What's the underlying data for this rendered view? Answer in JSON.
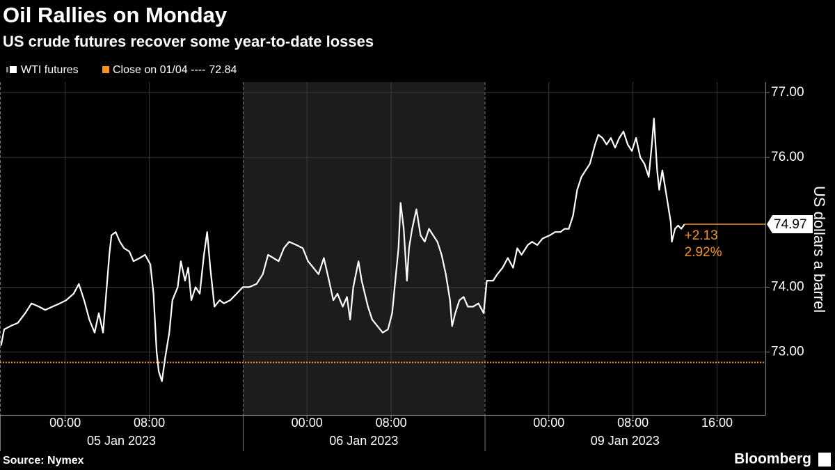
{
  "chart_data": {
    "type": "line",
    "title": "Oil Rallies on Monday",
    "subtitle": "US crude futures recover some year-to-date losses",
    "y_axis_label": "US dollars a barrel",
    "source": "Source: Nymex",
    "brand": "Bloomberg",
    "x": [
      -6.1,
      -5.8,
      -5.2,
      -4.5,
      -3.8,
      -3.2,
      -2.5,
      -1.9,
      -1.2,
      -0.5,
      0.1,
      0.8,
      1.3,
      1.8,
      2.3,
      2.8,
      3.2,
      3.6,
      3.9,
      4.2,
      4.4,
      4.8,
      5.2,
      5.6,
      6.1,
      6.5,
      7.1,
      7.6,
      8.1,
      8.4,
      8.7,
      8.9,
      9.2,
      9.5,
      9.9,
      10.2,
      10.7,
      11.0,
      11.4,
      11.7,
      12.0,
      12.4,
      12.8,
      13.2,
      13.5,
      13.8,
      14.2,
      14.7,
      15.1,
      15.7,
      16.3,
      16.9,
      17.5,
      18.2,
      18.8,
      19.3,
      19.8,
      20.3,
      20.8,
      21.3,
      22.0,
      22.6,
      23.1,
      23.6,
      24.1,
      24.6,
      25.1,
      25.5,
      25.9,
      26.4,
      26.8,
      27.1,
      27.4,
      27.9,
      28.2,
      28.8,
      29.2,
      29.7,
      30.2,
      30.7,
      31.1,
      31.4,
      31.7,
      31.9,
      32.2,
      32.5,
      32.7,
      33.0,
      33.4,
      33.8,
      34.2,
      34.6,
      35.0,
      35.4,
      35.8,
      36.2,
      36.6,
      36.8,
      37.1,
      37.5,
      37.9,
      38.3,
      38.8,
      39.3,
      39.8,
      40.1,
      40.7,
      41.1,
      41.6,
      42.1,
      42.6,
      43.0,
      43.4,
      44.0,
      44.4,
      44.9,
      45.4,
      46.1,
      46.6,
      47.1,
      47.5,
      47.9,
      48.3,
      48.7,
      49.1,
      49.5,
      49.9,
      50.4,
      50.7,
      51.1,
      51.5,
      51.9,
      52.3,
      52.7,
      53.1,
      53.5,
      53.9,
      54.3,
      54.7,
      55.1,
      55.5,
      55.8,
      56.0,
      56.3,
      56.5,
      56.8,
      57.1,
      57.3,
      57.6,
      57.7,
      58.0,
      58.3,
      58.6,
      58.9
    ],
    "series": [
      {
        "name": "WTI futures",
        "color": "#ffffff",
        "values": [
          73.1,
          73.35,
          73.4,
          73.45,
          73.6,
          73.75,
          73.7,
          73.65,
          73.7,
          73.75,
          73.8,
          73.9,
          74.05,
          73.8,
          73.5,
          73.3,
          73.6,
          73.3,
          73.9,
          74.5,
          74.8,
          74.85,
          74.7,
          74.6,
          74.55,
          74.4,
          74.45,
          74.5,
          74.35,
          73.9,
          73.0,
          72.7,
          72.55,
          72.9,
          73.3,
          73.8,
          74.0,
          74.4,
          74.1,
          74.3,
          73.8,
          74.0,
          73.9,
          74.5,
          74.85,
          74.3,
          73.7,
          73.8,
          73.75,
          73.8,
          73.9,
          74.0,
          74.0,
          74.05,
          74.2,
          74.5,
          74.45,
          74.4,
          74.6,
          74.7,
          74.65,
          74.6,
          74.4,
          74.3,
          74.2,
          74.45,
          74.1,
          73.8,
          73.9,
          73.7,
          73.85,
          73.5,
          74.0,
          74.4,
          74.1,
          73.7,
          73.5,
          73.4,
          73.3,
          73.35,
          73.6,
          74.1,
          74.6,
          75.3,
          74.9,
          74.1,
          74.6,
          74.9,
          75.2,
          74.8,
          74.7,
          74.9,
          74.8,
          74.7,
          74.5,
          74.2,
          73.8,
          73.4,
          73.6,
          73.8,
          73.85,
          73.7,
          73.7,
          73.75,
          73.6,
          74.1,
          74.1,
          74.2,
          74.3,
          74.45,
          74.3,
          74.6,
          74.5,
          74.65,
          74.7,
          74.65,
          74.75,
          74.8,
          74.85,
          74.85,
          74.9,
          74.9,
          75.1,
          75.5,
          75.7,
          75.8,
          75.9,
          76.2,
          76.35,
          76.3,
          76.2,
          76.3,
          76.15,
          76.3,
          76.4,
          76.2,
          76.1,
          76.3,
          76.0,
          75.9,
          75.7,
          76.2,
          76.6,
          75.8,
          75.5,
          75.8,
          75.5,
          75.3,
          75.0,
          74.7,
          74.9,
          74.95,
          74.9,
          74.97
        ]
      }
    ],
    "reference_line": {
      "name": "Close on 01/04 ----",
      "value": 72.84,
      "color": "#f7931e"
    },
    "last_value": 74.97,
    "annotations": [
      {
        "value": 2.13,
        "label": "+2.13"
      },
      {
        "value": 2.92,
        "label": "2.92%"
      }
    ],
    "xlim": [
      -6.2,
      66.6
    ],
    "xticks": [
      {
        "value": 0,
        "label": "00:00"
      },
      {
        "value": 8,
        "label": "08:00"
      },
      {
        "value": 23,
        "label": "00:00"
      },
      {
        "value": 31,
        "label": "08:00"
      },
      {
        "value": 46,
        "label": "00:00"
      },
      {
        "value": 54,
        "label": "08:00"
      },
      {
        "value": 62,
        "label": "16:00"
      }
    ],
    "x_groups": [
      {
        "label": "05 Jan 2023",
        "start": -6.2,
        "end": 16.9,
        "shaded": false
      },
      {
        "label": "06 Jan 2023",
        "start": 16.9,
        "end": 39.9,
        "shaded": true
      },
      {
        "label": "09 Jan 2023",
        "start": 39.9,
        "end": 66.6,
        "shaded": false
      }
    ],
    "ylim": [
      72.03,
      77.16
    ],
    "yticks": [
      {
        "value": 73,
        "label": "73.00"
      },
      {
        "value": 74,
        "label": "74.00"
      },
      {
        "value": 76,
        "label": "76.00"
      },
      {
        "value": 77,
        "label": "77.00"
      }
    ],
    "grid": true
  }
}
